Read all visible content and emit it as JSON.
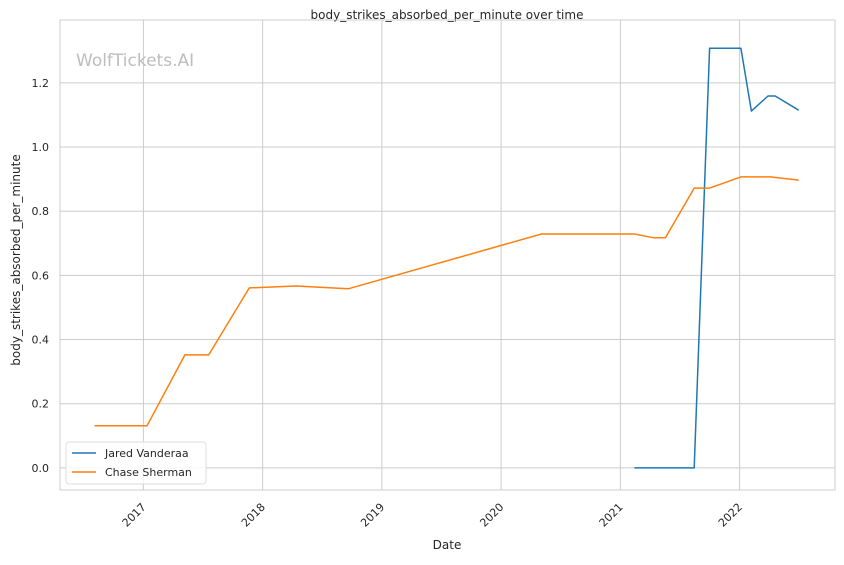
{
  "chart_data": {
    "type": "line",
    "title": "body_strikes_absorbed_per_minute over time",
    "xlabel": "Date",
    "ylabel": "body_strikes_absorbed_per_minute",
    "watermark": "WolfTickets.AI",
    "xlim": [
      "2016-04-20",
      "2022-10-20"
    ],
    "ylim": [
      -0.069,
      1.396
    ],
    "x_ticks": [
      "2017",
      "2018",
      "2019",
      "2020",
      "2021",
      "2022"
    ],
    "y_ticks": [
      "0.0",
      "0.2",
      "0.4",
      "0.6",
      "0.8",
      "1.0",
      "1.2"
    ],
    "grid": true,
    "legend_position": "lower-left",
    "series": [
      {
        "name": "Jared Vanderaa",
        "color": "#1f77b4",
        "x": [
          "2021-02-13",
          "2021-08-15",
          "2021-10-01",
          "2022-01-05",
          "2022-02-06",
          "2022-03-29",
          "2022-04-20",
          "2022-07-01"
        ],
        "y": [
          0.0,
          0.0,
          1.308,
          1.308,
          1.112,
          1.159,
          1.159,
          1.115
        ]
      },
      {
        "name": "Chase Sherman",
        "color": "#ff7f0e",
        "x": [
          "2016-08-04",
          "2017-01-12",
          "2017-05-08",
          "2017-07-20",
          "2017-11-21",
          "2018-04-13",
          "2018-09-20",
          "2020-05-04",
          "2021-02-13",
          "2021-04-13",
          "2021-05-19",
          "2021-08-15",
          "2021-10-01",
          "2022-01-05",
          "2022-04-05",
          "2022-07-01"
        ],
        "y": [
          0.131,
          0.131,
          0.352,
          0.352,
          0.561,
          0.567,
          0.558,
          0.729,
          0.729,
          0.717,
          0.717,
          0.872,
          0.872,
          0.907,
          0.907,
          0.897
        ]
      }
    ]
  }
}
